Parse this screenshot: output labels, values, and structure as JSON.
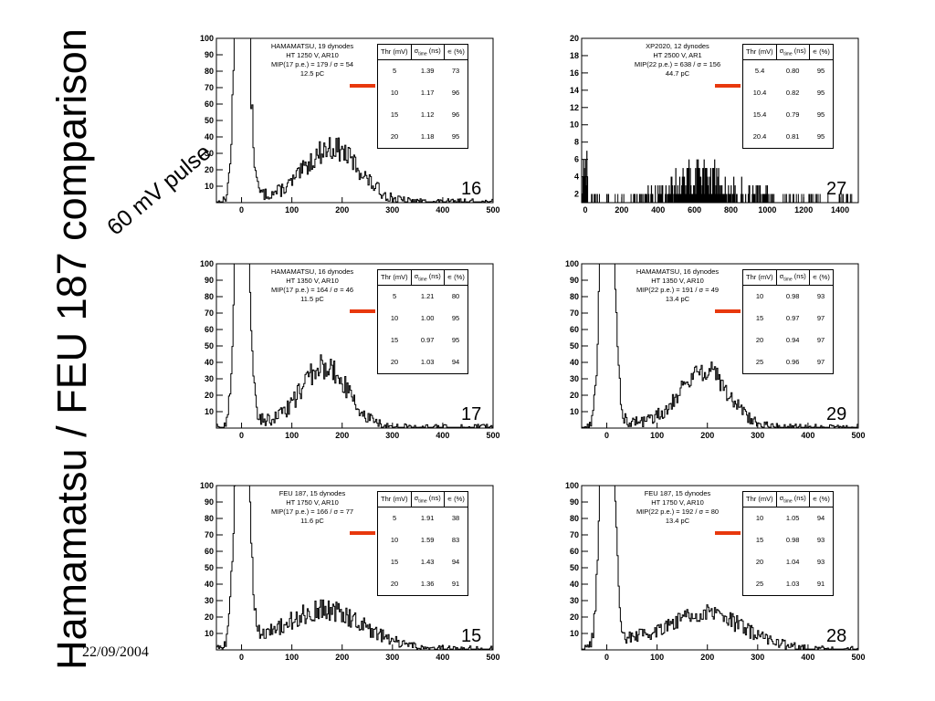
{
  "slide": {
    "title": "Hamamatsu / FEU 187 comparison",
    "subtitle": "60 mV pulse",
    "date": "22/09/2004"
  },
  "table_header": {
    "thr": "Thr (mV)",
    "sigma_pre": "σ",
    "sigma_sub": "time",
    "sigma_post": " (ns)",
    "eff": "∊ (%)"
  },
  "accent_color": "#e8380d",
  "chart_data": [
    {
      "type": "histogram",
      "panel_number": "16",
      "info": [
        "HAMAMATSU, 19 dynodes",
        "HT 1250 V, AR10",
        "MIP(17 p.e.) = 179 / σ = 54",
        "12.5 pC"
      ],
      "bold_info": false,
      "xlim": [
        -50,
        500
      ],
      "ylim": [
        0,
        100
      ],
      "xticks": [
        "0",
        "100",
        "200",
        "300",
        "400",
        "500"
      ],
      "yticks": [
        "10",
        "20",
        "30",
        "40",
        "50",
        "60",
        "70",
        "80",
        "90",
        "100"
      ],
      "peak": {
        "mean": 179,
        "sigma": 54,
        "height": 33
      },
      "noise": "regular",
      "table": [
        [
          "5",
          "1.39",
          "73"
        ],
        [
          "10",
          "1.17",
          "96"
        ],
        [
          "15",
          "1.12",
          "96"
        ],
        [
          "20",
          "1.18",
          "95"
        ]
      ]
    },
    {
      "type": "histogram",
      "panel_number": "27",
      "info": [
        "XP2020, 12 dynodes",
        "HT 2500 V, AR1",
        "MIP(22 p.e.) = 638 / σ = 156",
        "44.7 pC"
      ],
      "bold_info": false,
      "xlim": [
        -20,
        1500
      ],
      "ylim": [
        1,
        20
      ],
      "xticks": [
        "0",
        "200",
        "400",
        "600",
        "800",
        "1000",
        "1200",
        "1400"
      ],
      "yticks": [
        "2",
        "4",
        "6",
        "8",
        "10",
        "12",
        "14",
        "16",
        "18",
        "20"
      ],
      "peak": {
        "mean": 638,
        "sigma": 156,
        "height": 4
      },
      "noise": "sparse",
      "table": [
        [
          "5.4",
          "0.80",
          "95"
        ],
        [
          "10.4",
          "0.82",
          "95"
        ],
        [
          "15.4",
          "0.79",
          "95"
        ],
        [
          "20.4",
          "0.81",
          "95"
        ]
      ]
    },
    {
      "type": "histogram",
      "panel_number": "17",
      "info": [
        "HAMAMATSU, 16 dynodes",
        "HT 1350 V, AR10",
        "MIP(17 p.e.) = 164 / σ = 46",
        "11.5 pC"
      ],
      "bold_info": false,
      "xlim": [
        -50,
        500
      ],
      "ylim": [
        0,
        100
      ],
      "xticks": [
        "0",
        "100",
        "200",
        "300",
        "400",
        "500"
      ],
      "yticks": [
        "10",
        "20",
        "30",
        "40",
        "50",
        "60",
        "70",
        "80",
        "90",
        "100"
      ],
      "peak": {
        "mean": 164,
        "sigma": 46,
        "height": 37
      },
      "noise": "regular",
      "table": [
        [
          "5",
          "1.21",
          "80"
        ],
        [
          "10",
          "1.00",
          "95"
        ],
        [
          "15",
          "0.97",
          "95"
        ],
        [
          "20",
          "1.03",
          "94"
        ]
      ]
    },
    {
      "type": "histogram",
      "panel_number": "29",
      "info": [
        "HAMAMATSU, 16 dynodes",
        "HT 1350 V, AR10",
        "MIP(22 p.e.) = 191 / σ = 49",
        "13.4 pC"
      ],
      "bold_info": false,
      "xlim": [
        -50,
        500
      ],
      "ylim": [
        0,
        100
      ],
      "xticks": [
        "0",
        "100",
        "200",
        "300",
        "400",
        "500"
      ],
      "yticks": [
        "10",
        "20",
        "30",
        "40",
        "50",
        "60",
        "70",
        "80",
        "90",
        "100"
      ],
      "peak": {
        "mean": 191,
        "sigma": 49,
        "height": 35
      },
      "noise": "regular",
      "table": [
        [
          "10",
          "0.98",
          "93"
        ],
        [
          "15",
          "0.97",
          "97"
        ],
        [
          "20",
          "0.94",
          "97"
        ],
        [
          "25",
          "0.96",
          "97"
        ]
      ]
    },
    {
      "type": "histogram",
      "panel_number": "15",
      "info": [
        "FEU 187, 15 dynodes",
        "HT 1750 V, AR10",
        "MIP(17 p.e.) = 166 / σ = 77",
        "11.6 pC"
      ],
      "bold_info": true,
      "xlim": [
        -50,
        500
      ],
      "ylim": [
        0,
        100
      ],
      "xticks": [
        "0",
        "100",
        "200",
        "300",
        "400",
        "500"
      ],
      "yticks": [
        "10",
        "20",
        "30",
        "40",
        "50",
        "60",
        "70",
        "80",
        "90",
        "100"
      ],
      "peak": {
        "mean": 166,
        "sigma": 77,
        "height": 24
      },
      "noise": "regular",
      "table": [
        [
          "5",
          "1.91",
          "38"
        ],
        [
          "10",
          "1.59",
          "83"
        ],
        [
          "15",
          "1.43",
          "94"
        ],
        [
          "20",
          "1.36",
          "91"
        ]
      ]
    },
    {
      "type": "histogram",
      "panel_number": "28",
      "info": [
        "FEU 187, 15 dynodes",
        "HT 1750 V, AR10",
        "MIP(22 p.e.) = 192 / σ = 80",
        "13.4 pC"
      ],
      "bold_info": true,
      "xlim": [
        -50,
        500
      ],
      "ylim": [
        0,
        100
      ],
      "xticks": [
        "0",
        "100",
        "200",
        "300",
        "400",
        "500"
      ],
      "yticks": [
        "10",
        "20",
        "30",
        "40",
        "50",
        "60",
        "70",
        "80",
        "90",
        "100"
      ],
      "peak": {
        "mean": 192,
        "sigma": 80,
        "height": 22
      },
      "noise": "regular",
      "table": [
        [
          "10",
          "1.05",
          "94"
        ],
        [
          "15",
          "0.98",
          "93"
        ],
        [
          "20",
          "1.04",
          "93"
        ],
        [
          "25",
          "1.03",
          "91"
        ]
      ]
    }
  ]
}
